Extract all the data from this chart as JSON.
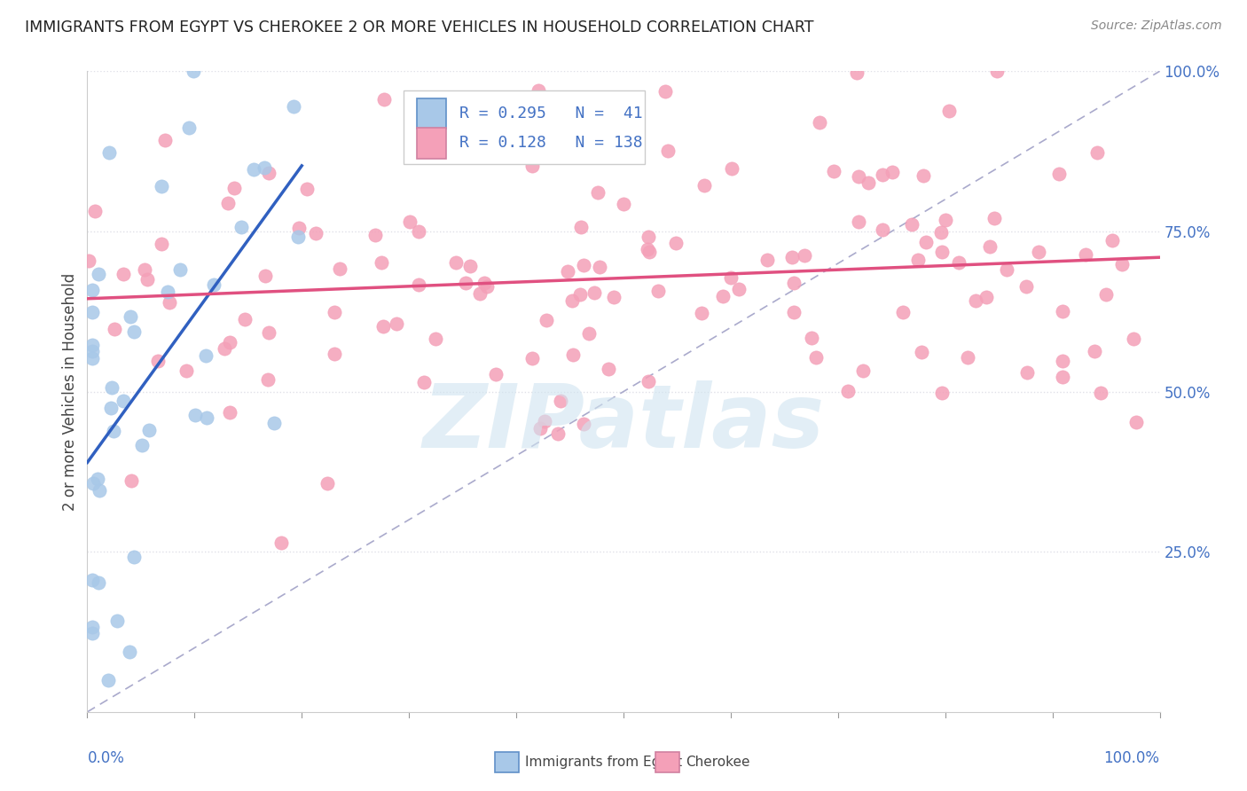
{
  "title": "IMMIGRANTS FROM EGYPT VS CHEROKEE 2 OR MORE VEHICLES IN HOUSEHOLD CORRELATION CHART",
  "source": "Source: ZipAtlas.com",
  "ylabel": "2 or more Vehicles in Household",
  "legend_blue_R": 0.295,
  "legend_blue_N": 41,
  "legend_pink_R": 0.128,
  "legend_pink_N": 138,
  "blue_color": "#a8c8e8",
  "pink_color": "#f4a0b8",
  "blue_line_color": "#3060c0",
  "pink_line_color": "#e05080",
  "ref_line_color": "#aaaacc",
  "legend_label_blue": "Immigrants from Egypt",
  "legend_label_pink": "Cherokee",
  "blue_seed": 12,
  "pink_seed": 7,
  "watermark": "ZIPatlas",
  "watermark_color": "#d0e4f0",
  "grid_color": "#e0e0e8",
  "grid_style": "dotted"
}
